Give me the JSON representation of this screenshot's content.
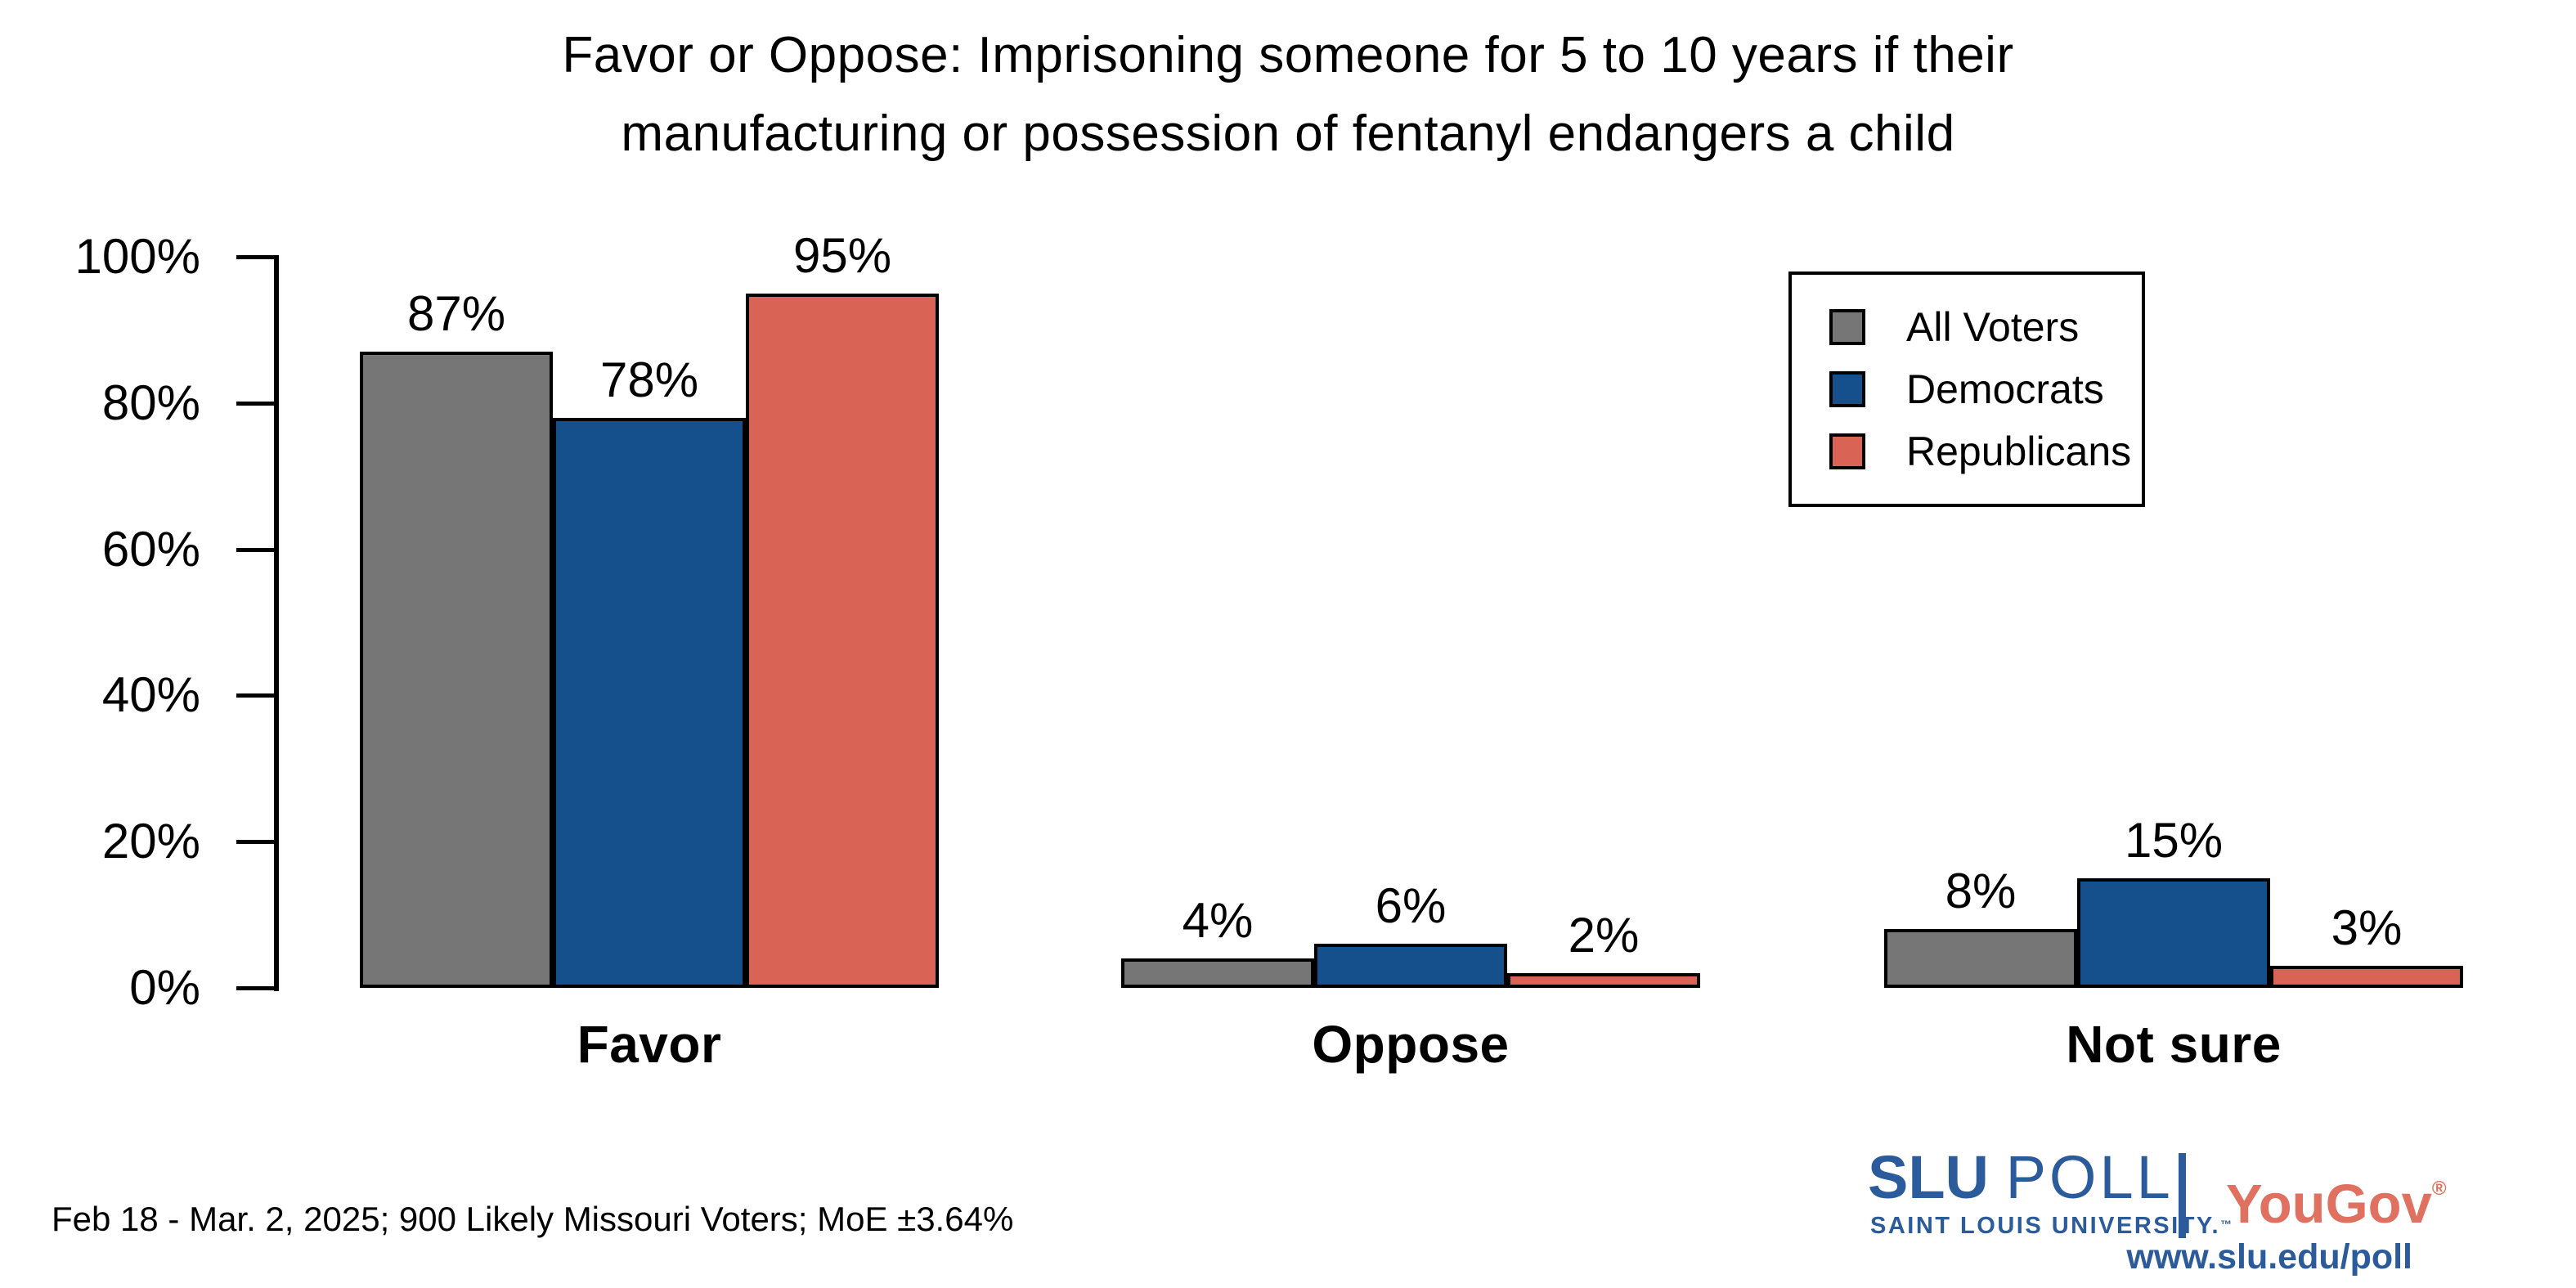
{
  "title": {
    "line1": "Favor or Oppose: Imprisoning someone for 5 to 10 years if their",
    "line2": "manufacturing or possession of fentanyl endangers a child"
  },
  "chart_data": {
    "type": "bar",
    "categories": [
      "Favor",
      "Oppose",
      "Not sure"
    ],
    "series": [
      {
        "name": "All Voters",
        "color": "#767676",
        "values": [
          87,
          4,
          8
        ]
      },
      {
        "name": "Democrats",
        "color": "#15508C",
        "values": [
          78,
          6,
          15
        ]
      },
      {
        "name": "Republicans",
        "color": "#D96455",
        "values": [
          95,
          2,
          3
        ]
      }
    ],
    "value_suffix": "%",
    "y_ticks": [
      0,
      20,
      40,
      60,
      80,
      100
    ],
    "y_tick_suffix": "%",
    "ylim": [
      0,
      100
    ],
    "grid": false,
    "legend_position": "upper right",
    "bar_outline_color": "#000000"
  },
  "footer": {
    "note": "Feb 18 - Mar. 2, 2025; 900 Likely Missouri Voters; MoE ±3.64%"
  },
  "branding": {
    "org_acronym": "SLU",
    "org_product": "POLL",
    "org_subtitle": "SAINT LOUIS UNIVERSITY.",
    "org_trademark": "™",
    "partner_name": "YouGov",
    "partner_registered": "®",
    "url": "www.slu.edu/poll",
    "org_color": "#2B5B9B",
    "partner_color": "#E0705F"
  }
}
